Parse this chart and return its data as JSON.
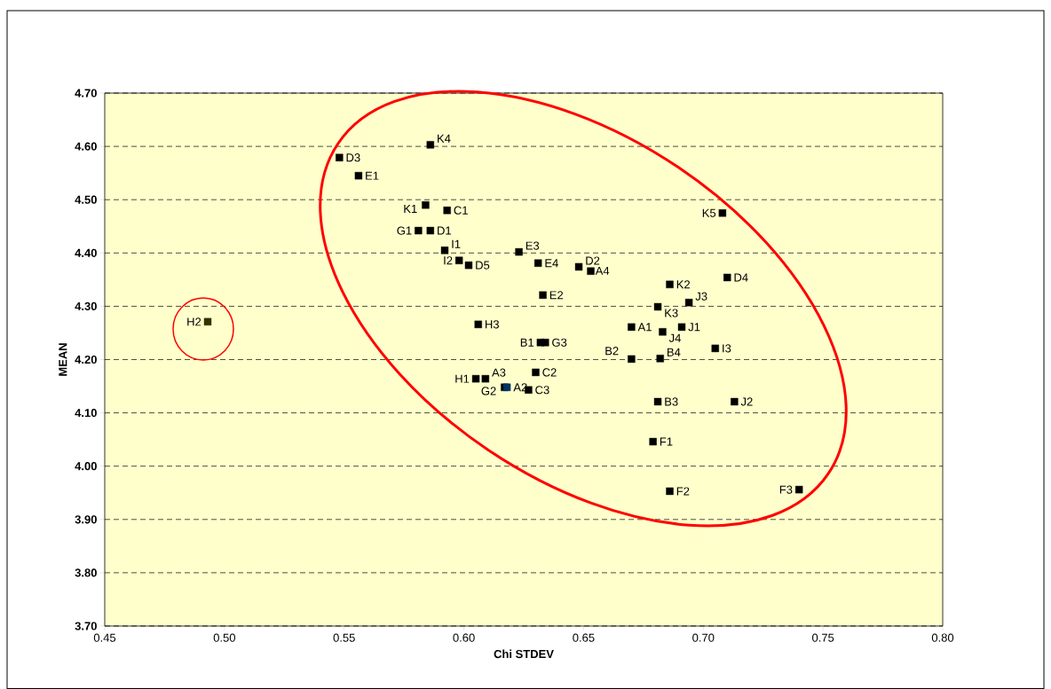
{
  "chart_data": {
    "type": "scatter",
    "xlabel": "Chi STDEV",
    "ylabel": "MEAN",
    "xlim": [
      0.45,
      0.8
    ],
    "ylim": [
      3.7,
      4.7
    ],
    "xticks": [
      {
        "value": 0.45,
        "label": "0.45"
      },
      {
        "value": 0.5,
        "label": "0.50"
      },
      {
        "value": 0.55,
        "label": "0.55"
      },
      {
        "value": 0.6,
        "label": "0.60"
      },
      {
        "value": 0.65,
        "label": "0.65"
      },
      {
        "value": 0.7,
        "label": "0.70"
      },
      {
        "value": 0.75,
        "label": "0.75"
      },
      {
        "value": 0.8,
        "label": "0.80"
      }
    ],
    "yticks": [
      {
        "value": 3.7,
        "label": "3.70"
      },
      {
        "value": 3.8,
        "label": "3.80"
      },
      {
        "value": 3.9,
        "label": "3.90"
      },
      {
        "value": 4.0,
        "label": "4.00"
      },
      {
        "value": 4.1,
        "label": "4.10"
      },
      {
        "value": 4.2,
        "label": "4.20"
      },
      {
        "value": 4.3,
        "label": "4.30"
      },
      {
        "value": 4.4,
        "label": "4.40"
      },
      {
        "value": 4.5,
        "label": "4.50"
      },
      {
        "value": 4.6,
        "label": "4.60"
      },
      {
        "value": 4.7,
        "label": "4.70"
      }
    ],
    "grid": "y",
    "marker": "square",
    "x": [
      0.586,
      0.548,
      0.556,
      0.584,
      0.593,
      0.581,
      0.586,
      0.592,
      0.598,
      0.602,
      0.606,
      0.623,
      0.631,
      0.648,
      0.653,
      0.633,
      0.632,
      0.634,
      0.686,
      0.681,
      0.694,
      0.71,
      0.708,
      0.67,
      0.683,
      0.691,
      0.705,
      0.67,
      0.682,
      0.605,
      0.609,
      0.617,
      0.618,
      0.63,
      0.627,
      0.681,
      0.713,
      0.679,
      0.686,
      0.74,
      0.493
    ],
    "values": [
      4.603,
      4.579,
      4.545,
      4.49,
      4.48,
      4.442,
      4.442,
      4.405,
      4.386,
      4.377,
      4.266,
      4.402,
      4.381,
      4.374,
      4.366,
      4.321,
      4.232,
      4.232,
      4.341,
      4.299,
      4.307,
      4.354,
      4.475,
      4.261,
      4.252,
      4.261,
      4.221,
      4.201,
      4.202,
      4.164,
      4.164,
      4.148,
      4.148,
      4.176,
      4.143,
      4.121,
      4.121,
      4.046,
      3.953,
      3.956,
      4.271
    ],
    "value_labels": [
      "K4",
      "D3",
      "E1",
      "K1",
      "C1",
      "G1",
      "D1",
      "I1",
      "I2",
      "D5",
      "H3",
      "E3",
      "E4",
      "D2",
      "A4",
      "E2",
      "B1",
      "G3",
      "K2",
      "K3",
      "J3",
      "D4",
      "K5",
      "A1",
      "J4",
      "J1",
      "I3",
      "B2",
      "B4",
      "H1",
      "A3",
      "G2",
      "A2",
      "C2",
      "C3",
      "B3",
      "J2",
      "F1",
      "F2",
      "F3",
      "H2"
    ],
    "colors": [
      "#000000",
      "#000000",
      "#000000",
      "#000000",
      "#000000",
      "#000000",
      "#000000",
      "#000000",
      "#000000",
      "#000000",
      "#000000",
      "#000000",
      "#000000",
      "#000000",
      "#000000",
      "#000000",
      "#000000",
      "#000000",
      "#000000",
      "#000000",
      "#000000",
      "#000000",
      "#000000",
      "#000000",
      "#000000",
      "#000000",
      "#000000",
      "#000000",
      "#000000",
      "#000000",
      "#000000",
      "#000000",
      "#003366",
      "#000000",
      "#000000",
      "#000000",
      "#000000",
      "#000000",
      "#000000",
      "#000000",
      "#333300"
    ]
  }
}
